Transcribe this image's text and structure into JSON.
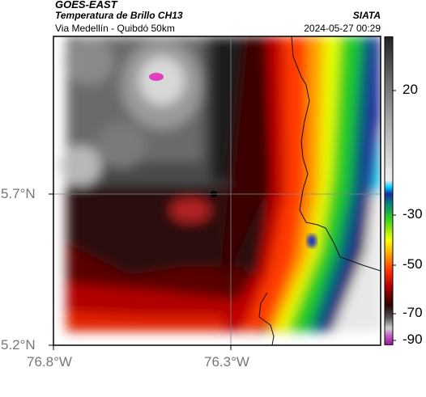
{
  "header": {
    "satellite": "GOES-EAST",
    "product": "Temperatura de Brillo CH13",
    "route": "Via Medellín - Quibdó 50km",
    "source": "SIATA",
    "datetime": "2024-05-27 00:29"
  },
  "axes": {
    "y_labels": [
      "5.7°N",
      "5.2°N"
    ],
    "x_labels": [
      "76.8°W",
      "76.3°W"
    ]
  },
  "colorbar": {
    "labels": [
      "20",
      "-30",
      "-50",
      "-70",
      "-90"
    ],
    "colors": [
      "#8a1a8a",
      "#c85ac8",
      "#cfcfcf",
      "#555555",
      "#2a0000",
      "#b00000",
      "#ff3000",
      "#ff9a00",
      "#ffff00",
      "#30d020",
      "#008080",
      "#1e2a9e",
      "#00c8ff",
      "#f0f0f0",
      "#b4b4b4",
      "#6e6e6e",
      "#202020"
    ]
  },
  "colors": {
    "grid": "#888888",
    "border": "#111111"
  }
}
